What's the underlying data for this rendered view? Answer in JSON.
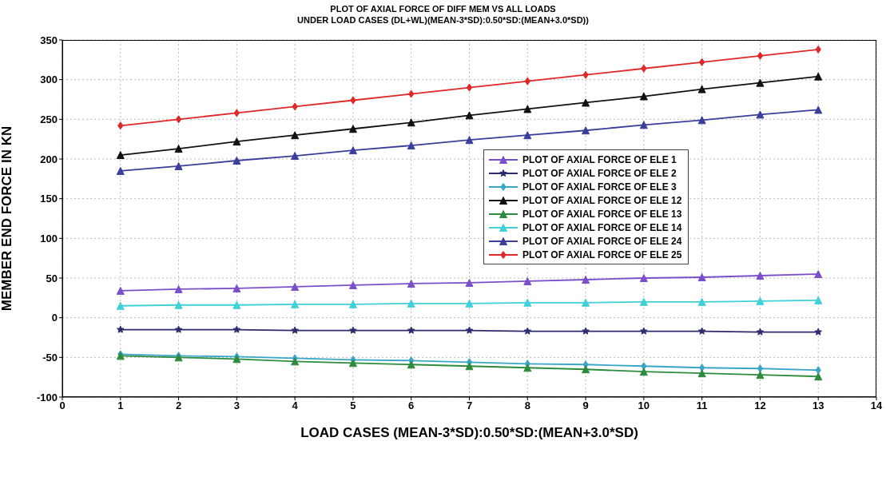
{
  "chart_data": {
    "type": "line",
    "title": "PLOT OF  AXIAL FORCE OF DIFF MEM VS ALL LOADS",
    "subtitle": "UNDER LOAD CASES (DL+WL)(MEAN-3*SD):0.50*SD:(MEAN+3.0*SD))",
    "xlabel": "LOAD CASES (MEAN-3*SD):0.50*SD:(MEAN+3.0*SD)",
    "ylabel": "MEMBER END FORCE IN KN",
    "x": [
      1,
      2,
      3,
      4,
      5,
      6,
      7,
      8,
      9,
      10,
      11,
      12,
      13
    ],
    "xlim": [
      0,
      14
    ],
    "xticks": [
      0,
      1,
      2,
      3,
      4,
      5,
      6,
      7,
      8,
      9,
      10,
      11,
      12,
      13,
      14
    ],
    "ylim": [
      -100,
      350
    ],
    "yticks": [
      -100,
      -50,
      0,
      50,
      100,
      150,
      200,
      250,
      300,
      350
    ],
    "grid": true,
    "legend": "right",
    "line_style": "solid",
    "series": [
      {
        "name": "PLOT OF AXIAL FORCE OF ELE 1",
        "color": "#7a4fc9",
        "marker": "triangle",
        "values": [
          34,
          36,
          37,
          39,
          41,
          43,
          44,
          46,
          48,
          50,
          51,
          53,
          55
        ]
      },
      {
        "name": "PLOT OF AXIAL FORCE OF ELE 2",
        "color": "#2e2a6e",
        "marker": "star",
        "values": [
          -15,
          -15,
          -15,
          -16,
          -16,
          -16,
          -16,
          -17,
          -17,
          -17,
          -17,
          -18,
          -18
        ]
      },
      {
        "name": "PLOT OF AXIAL FORCE OF ELE 3",
        "color": "#3aa6c8",
        "marker": "diamond",
        "values": [
          -46,
          -48,
          -49,
          -51,
          -53,
          -54,
          -56,
          -58,
          -59,
          -61,
          -63,
          -64,
          -66
        ]
      },
      {
        "name": "PLOT OF AXIAL FORCE OF ELE 12",
        "color": "#111111",
        "marker": "triangle",
        "values": [
          205,
          213,
          222,
          230,
          238,
          246,
          255,
          263,
          271,
          279,
          288,
          296,
          304
        ]
      },
      {
        "name": "PLOT OF AXIAL FORCE OF ELE 13",
        "color": "#2e8b3e",
        "marker": "triangle",
        "values": [
          -48,
          -50,
          -52,
          -55,
          -57,
          -59,
          -61,
          -63,
          -65,
          -68,
          -70,
          -72,
          -74
        ]
      },
      {
        "name": "PLOT OF AXIAL FORCE OF ELE 14",
        "color": "#3fd0d8",
        "marker": "triangle",
        "values": [
          15,
          16,
          16,
          17,
          17,
          18,
          18,
          19,
          19,
          20,
          20,
          21,
          22
        ]
      },
      {
        "name": "PLOT OF AXIAL FORCE OF ELE 24",
        "color": "#3b3f9a",
        "marker": "triangle",
        "values": [
          185,
          191,
          198,
          204,
          211,
          217,
          224,
          230,
          236,
          243,
          249,
          256,
          262
        ]
      },
      {
        "name": "PLOT OF AXIAL FORCE OF ELE 25",
        "color": "#e02828",
        "marker": "diamond",
        "values": [
          242,
          250,
          258,
          266,
          274,
          282,
          290,
          298,
          306,
          314,
          322,
          330,
          338
        ]
      }
    ]
  }
}
